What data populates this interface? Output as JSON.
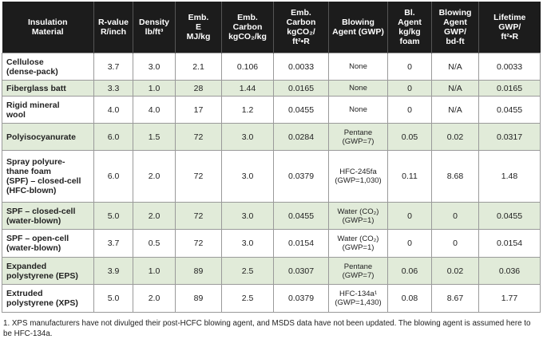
{
  "table": {
    "header": [
      "Insulation\nMaterial",
      "R-value\nR/inch",
      "Density\nlb/ft³",
      "Emb.\nE\nMJ/kg",
      "Emb.\nCarbon\nkgCO₂/kg",
      "Emb.\nCarbon\nkgCO₂/\nft²•R",
      "Blowing\nAgent (GWP)",
      "Bl.\nAgent\nkg/kg\nfoam",
      "Blowing\nAgent\nGWP/\nbd-ft",
      "Lifetime\nGWP/\nft²•R"
    ],
    "rows": [
      [
        "Cellulose\n(dense-pack)",
        "3.7",
        "3.0",
        "2.1",
        "0.106",
        "0.0033",
        "None",
        "0",
        "N/A",
        "0.0033"
      ],
      [
        "Fiberglass batt",
        "3.3",
        "1.0",
        "28",
        "1.44",
        "0.0165",
        "None",
        "0",
        "N/A",
        "0.0165"
      ],
      [
        "Rigid mineral\nwool",
        "4.0",
        "4.0",
        "17",
        "1.2",
        "0.0455",
        "None",
        "0",
        "N/A",
        "0.0455"
      ],
      [
        "Polyisocyanurate",
        "6.0",
        "1.5",
        "72",
        "3.0",
        "0.0284",
        "Pentane\n(GWP=7)",
        "0.05",
        "0.02",
        "0.0317"
      ],
      [
        "Spray polyure-\nthane foam\n(SPF) – closed-cell\n(HFC-blown)",
        "6.0",
        "2.0",
        "72",
        "3.0",
        "0.0379",
        "HFC-245fa\n(GWP=1,030)",
        "0.11",
        "8.68",
        "1.48"
      ],
      [
        "SPF – closed-cell\n(water-blown)",
        "5.0",
        "2.0",
        "72",
        "3.0",
        "0.0455",
        "Water (CO₂)\n(GWP=1)",
        "0",
        "0",
        "0.0455"
      ],
      [
        "SPF – open-cell\n(water-blown)",
        "3.7",
        "0.5",
        "72",
        "3.0",
        "0.0154",
        "Water (CO₂)\n(GWP=1)",
        "0",
        "0",
        "0.0154"
      ],
      [
        "Expanded\npolystyrene (EPS)",
        "3.9",
        "1.0",
        "89",
        "2.5",
        "0.0307",
        "Pentane\n(GWP=7)",
        "0.06",
        "0.02",
        "0.036"
      ],
      [
        "Extruded\npolystyrene (XPS)",
        "5.0",
        "2.0",
        "89",
        "2.5",
        "0.0379",
        "HFC-134a¹\n(GWP=1,430)",
        "0.08",
        "8.67",
        "1.77"
      ]
    ],
    "footnote": "1. XPS manufacturers have not divulged their post-HCFC blowing agent, and MSDS data have not been updated. The blowing agent is assumed here to be HFC-134a."
  }
}
